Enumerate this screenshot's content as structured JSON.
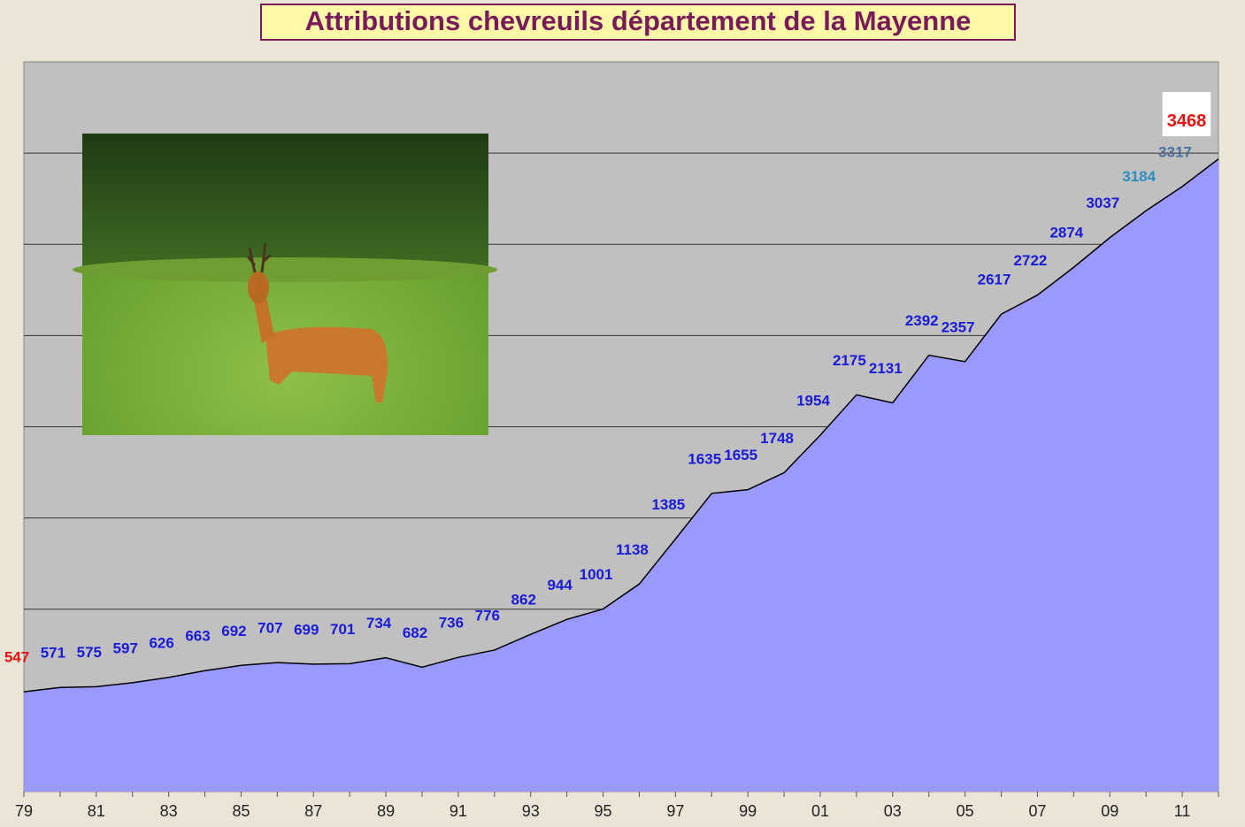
{
  "chart_data": {
    "type": "area",
    "title": "Attributions chevreuils département de la Mayenne",
    "categories": [
      "79",
      null,
      "81",
      null,
      "83",
      null,
      "85",
      null,
      "87",
      null,
      "89",
      null,
      "91",
      null,
      "93",
      null,
      "95",
      null,
      "97",
      null,
      "99",
      null,
      "01",
      null,
      "03",
      null,
      "05",
      null,
      "07",
      null,
      "09",
      null,
      "11",
      null
    ],
    "values": [
      547,
      571,
      575,
      597,
      626,
      663,
      692,
      707,
      699,
      701,
      734,
      682,
      736,
      776,
      862,
      944,
      1001,
      1138,
      1385,
      1635,
      1655,
      1748,
      1954,
      2175,
      2131,
      2392,
      2357,
      2617,
      2722,
      2874,
      3037,
      3184,
      3317,
      3468
    ],
    "color": "#9999ff",
    "label_colors": [
      "#ee1111",
      "#1a1adb",
      "#1a1adb",
      "#1a1adb",
      "#1a1adb",
      "#1a1adb",
      "#1a1adb",
      "#1a1adb",
      "#1a1adb",
      "#1a1adb",
      "#1a1adb",
      "#1a1adb",
      "#1a1adb",
      "#1a1adb",
      "#1a1adb",
      "#1a1adb",
      "#1a1adb",
      "#1a1adb",
      "#1a1adb",
      "#1a1adb",
      "#1a1adb",
      "#1a1adb",
      "#1a1adb",
      "#1a1adb",
      "#1a1adb",
      "#1a1adb",
      "#1a1adb",
      "#1a1adb",
      "#1a1adb",
      "#1a1adb",
      "#1a1adb",
      "#2a8fc0",
      "#4a6fa0",
      "#ee1111"
    ],
    "ylim": [
      0,
      4000
    ],
    "yticks": [
      500,
      1000,
      1500,
      2000,
      2500,
      3000,
      3500
    ],
    "grid": true
  }
}
